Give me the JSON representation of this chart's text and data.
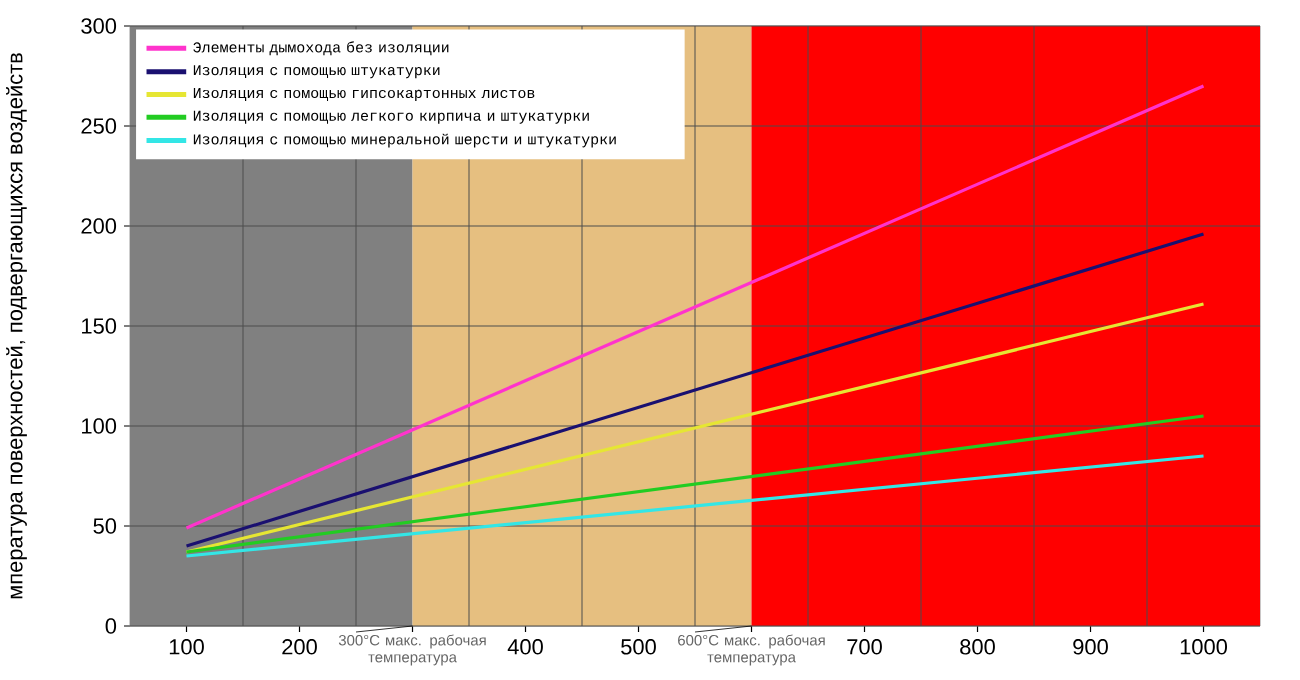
{
  "chart_data": {
    "type": "line",
    "ylabel": "мпература поверхностей, подвергающихся воздейств",
    "xlim": [
      50,
      1050
    ],
    "xticks": [
      100,
      200,
      {
        "value": 300,
        "label": null
      },
      400,
      500,
      {
        "value": 600,
        "label": null
      },
      700,
      800,
      900,
      1000
    ],
    "ylim": [
      0,
      300
    ],
    "yticks": [
      0,
      50,
      100,
      150,
      200,
      250,
      300
    ],
    "grid": true,
    "legend": "top left",
    "x": [
      100,
      1000
    ],
    "bands": [
      {
        "axis": "x",
        "from": 50,
        "to": 300,
        "color": "#808080",
        "label": "300°C макс. рабочая температура"
      },
      {
        "axis": "x",
        "from": 300,
        "to": 600,
        "color": "#e6bf80",
        "label": "600°C макс. рабочая температура"
      },
      {
        "axis": "x",
        "from": 600,
        "to": 1050,
        "color": "#ff0000"
      }
    ],
    "series": [
      {
        "name": "Элементы дымохода без изоляции",
        "color": "#ff33cc",
        "values": [
          49,
          270
        ]
      },
      {
        "name": "Изоляция с помощью штукатурки",
        "color": "#1a1070",
        "values": [
          40,
          196
        ]
      },
      {
        "name": "Изоляция с помощью гипсокартонных листов",
        "color": "#e6e633",
        "values": [
          37,
          161
        ]
      },
      {
        "name": "Изоляция с помощью легкого кирпича и штукатурки",
        "color": "#22cc22",
        "values": [
          37,
          105
        ]
      },
      {
        "name": "Изоляция с помощью минеральной шерсти и штукатурки",
        "color": "#33e6e6",
        "values": [
          35,
          85
        ]
      }
    ]
  }
}
